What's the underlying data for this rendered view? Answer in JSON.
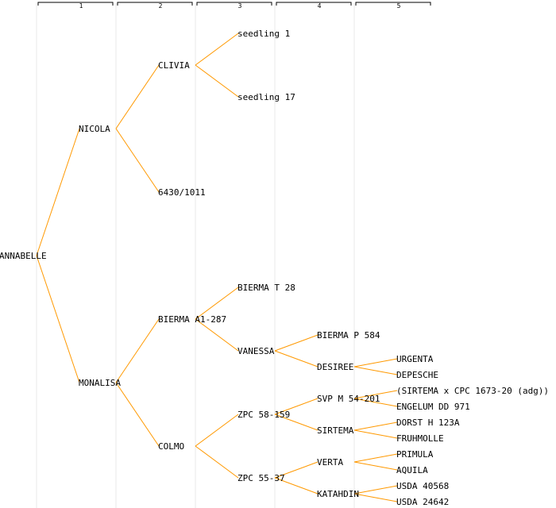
{
  "pedigree": {
    "generation_labels": [
      "1",
      "2",
      "3",
      "4",
      "5"
    ],
    "root": {
      "name": "ANNABELLE",
      "children": [
        {
          "name": "NICOLA",
          "children": [
            {
              "name": "CLIVIA",
              "children": [
                {
                  "name": "seedling 1"
                },
                {
                  "name": "seedling 17"
                }
              ]
            },
            {
              "name": "6430/1011"
            }
          ]
        },
        {
          "name": "MONALISA",
          "children": [
            {
              "name": "BIERMA A1-287",
              "children": [
                {
                  "name": "BIERMA T 28"
                },
                {
                  "name": "VANESSA",
                  "children": [
                    {
                      "name": "BIERMA P 584"
                    },
                    {
                      "name": "DESIREE",
                      "children": [
                        {
                          "name": "URGENTA"
                        },
                        {
                          "name": "DEPESCHE"
                        }
                      ]
                    }
                  ]
                }
              ]
            },
            {
              "name": "COLMO",
              "children": [
                {
                  "name": "ZPC 58-159",
                  "children": [
                    {
                      "name": "SVP M 54-201",
                      "children": [
                        {
                          "name": "(SIRTEMA x CPC 1673-20 (adg))"
                        },
                        {
                          "name": "ENGELUM DD 971"
                        }
                      ]
                    },
                    {
                      "name": "SIRTEMA",
                      "children": [
                        {
                          "name": "DORST H 123A"
                        },
                        {
                          "name": "FRUHMOLLE"
                        }
                      ]
                    }
                  ]
                },
                {
                  "name": "ZPC 55-37",
                  "children": [
                    {
                      "name": "VERTA",
                      "children": [
                        {
                          "name": "PRIMULA"
                        },
                        {
                          "name": "AQUILA"
                        }
                      ]
                    },
                    {
                      "name": "KATAHDIN",
                      "children": [
                        {
                          "name": "USDA 40568"
                        },
                        {
                          "name": "USDA 24642"
                        }
                      ]
                    }
                  ]
                }
              ]
            }
          ]
        }
      ]
    }
  }
}
